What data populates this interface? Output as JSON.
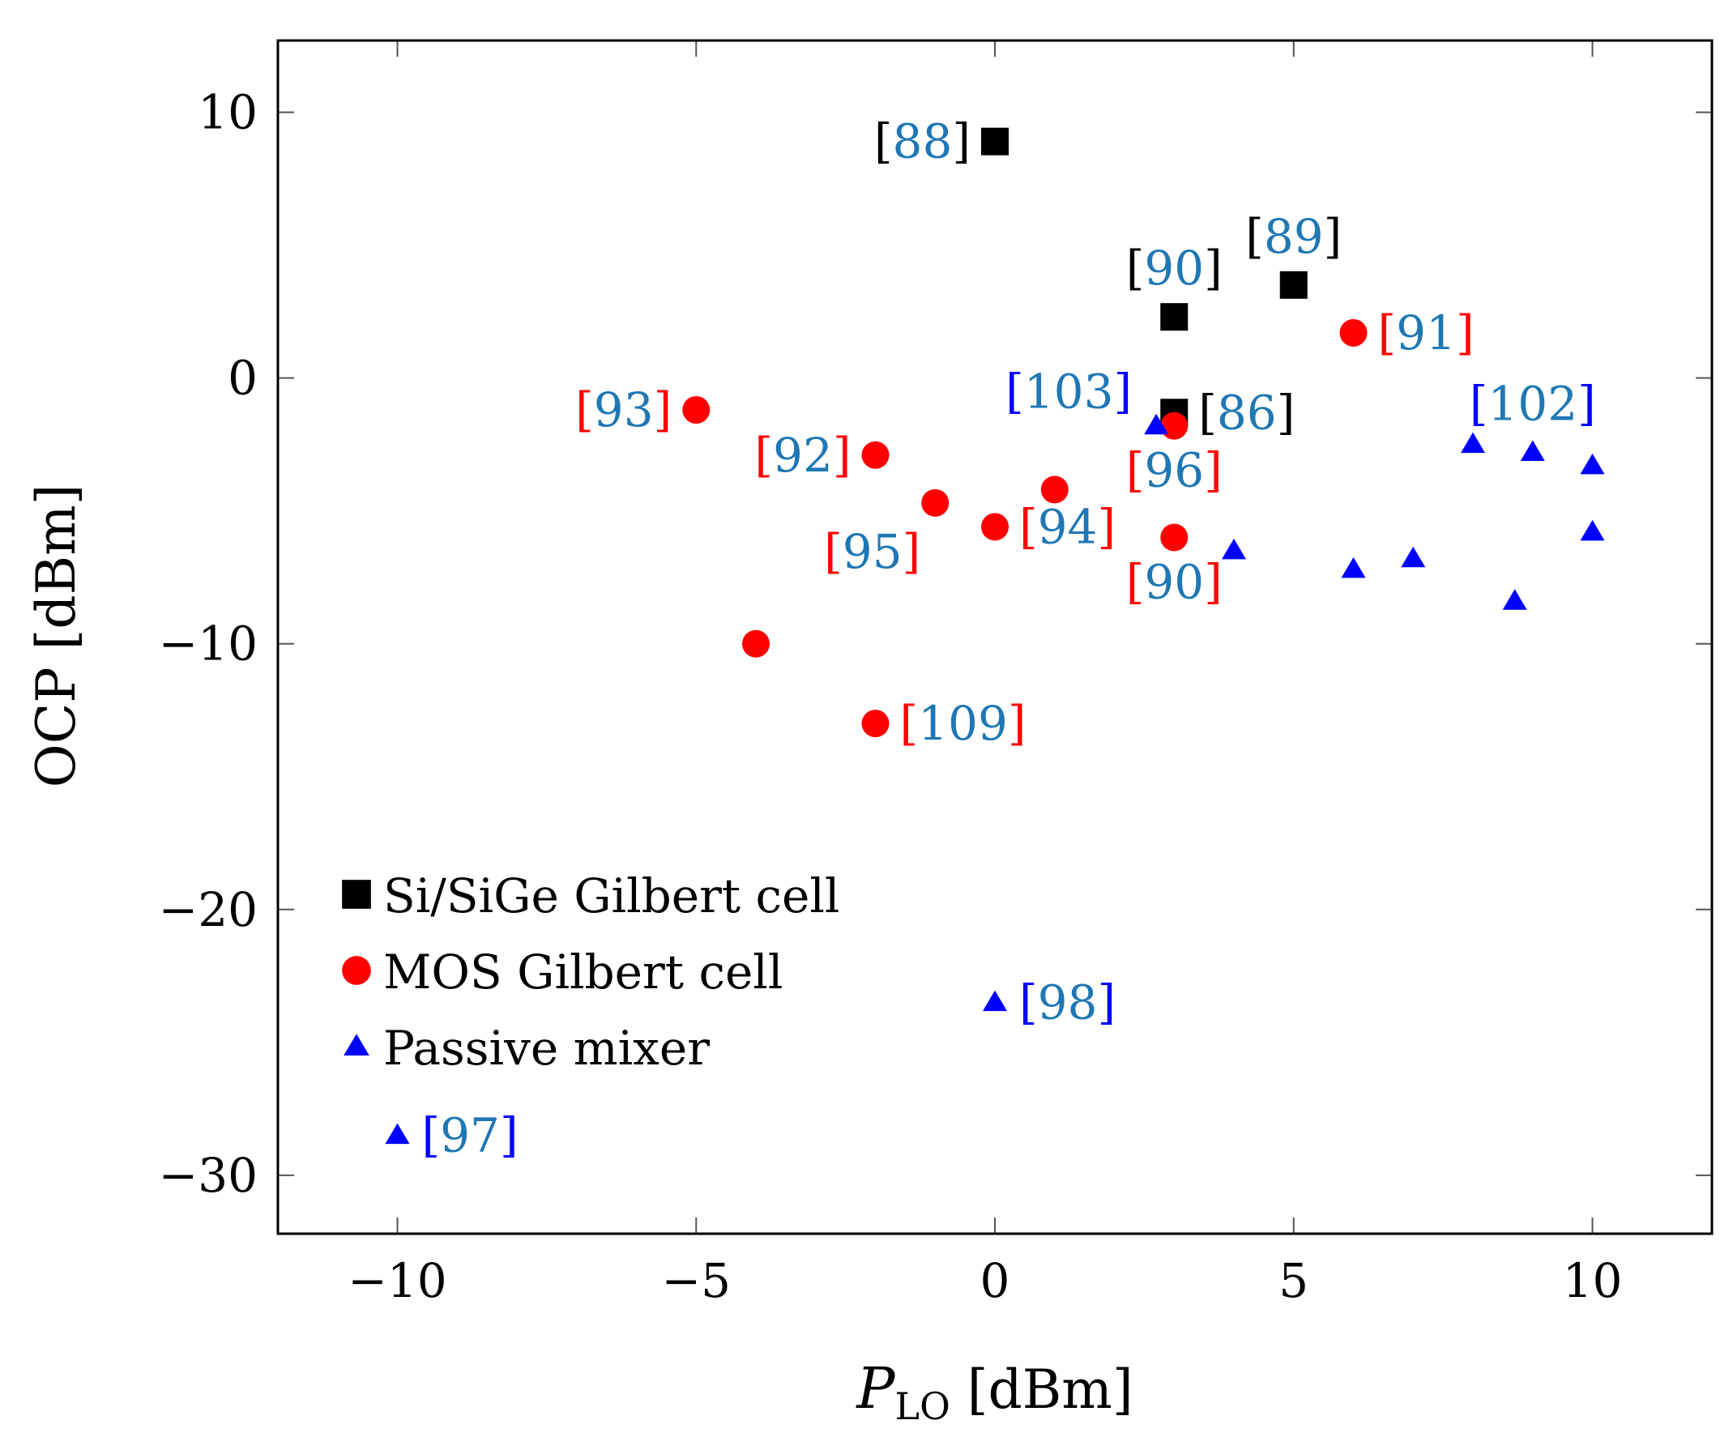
{
  "chart_data": {
    "type": "scatter",
    "title": "",
    "xlabel": {
      "main": "P",
      "subscript": "LO",
      "unit": " [dBm]"
    },
    "ylabel": "OCP [dBm]",
    "xlim": [
      -12,
      12
    ],
    "ylim": [
      -32.2,
      12.7
    ],
    "grid": false,
    "legend_position": "bottom-left",
    "x_ticks": [
      -10,
      -5,
      0,
      5,
      10
    ],
    "x_tick_labels": [
      "−10",
      "−5",
      "0",
      "5",
      "10"
    ],
    "y_ticks": [
      -30,
      -20,
      -10,
      0,
      10
    ],
    "y_tick_labels": [
      "−30",
      "−20",
      "−10",
      "0",
      "10"
    ],
    "colors": {
      "ref_text": "#1f77b4"
    },
    "series": [
      {
        "name": "Si/SiGe Gilbert cell",
        "marker": "square",
        "color": "#000000",
        "bracket_color": "#000000",
        "points": [
          {
            "x": 0,
            "y": 8.9,
            "label": "88",
            "anchor": "left"
          },
          {
            "x": 3,
            "y": 2.3,
            "label": "90",
            "anchor": "above"
          },
          {
            "x": 5,
            "y": 3.5,
            "label": "89",
            "anchor": "above"
          },
          {
            "x": 3,
            "y": -1.3,
            "label": "86",
            "anchor": "right"
          }
        ]
      },
      {
        "name": "MOS Gilbert cell",
        "marker": "circle",
        "color": "#ff0000",
        "bracket_color": "#ff0000",
        "points": [
          {
            "x": 6,
            "y": 1.7,
            "label": "91",
            "anchor": "right"
          },
          {
            "x": -5,
            "y": -1.2,
            "label": "93",
            "anchor": "left"
          },
          {
            "x": -2,
            "y": -2.9,
            "label": "92",
            "anchor": "left"
          },
          {
            "x": 3,
            "y": -1.8,
            "label": "96",
            "anchor": "below"
          },
          {
            "x": 1,
            "y": -4.2,
            "label": "",
            "anchor": "none"
          },
          {
            "x": -1,
            "y": -4.7,
            "label": "95",
            "anchor": "below-left"
          },
          {
            "x": 0,
            "y": -5.6,
            "label": "94",
            "anchor": "right"
          },
          {
            "x": 3,
            "y": -6.0,
            "label": "90",
            "anchor": "below"
          },
          {
            "x": -4,
            "y": -10.0,
            "label": "",
            "anchor": "none"
          },
          {
            "x": -2,
            "y": -13.0,
            "label": "109",
            "anchor": "right"
          }
        ]
      },
      {
        "name": "Passive mixer",
        "marker": "triangle",
        "color": "#0000ff",
        "bracket_color": "#0000ff",
        "points": [
          {
            "x": 2.7,
            "y": -1.8,
            "label": "103",
            "anchor": "above-left"
          },
          {
            "x": 4,
            "y": -6.5,
            "label": "",
            "anchor": "none"
          },
          {
            "x": 6,
            "y": -7.2,
            "label": "",
            "anchor": "none"
          },
          {
            "x": 7,
            "y": -6.8,
            "label": "",
            "anchor": "none"
          },
          {
            "x": 8,
            "y": -2.5,
            "label": "",
            "anchor": "none"
          },
          {
            "x": 9,
            "y": -2.8,
            "label": "102",
            "anchor": "above"
          },
          {
            "x": 10,
            "y": -3.3,
            "label": "",
            "anchor": "none"
          },
          {
            "x": 10,
            "y": -5.8,
            "label": "",
            "anchor": "none"
          },
          {
            "x": 8.7,
            "y": -8.4,
            "label": "",
            "anchor": "none"
          },
          {
            "x": 0,
            "y": -23.5,
            "label": "98",
            "anchor": "right"
          },
          {
            "x": -10,
            "y": -28.5,
            "label": "97",
            "anchor": "right"
          }
        ]
      }
    ]
  }
}
